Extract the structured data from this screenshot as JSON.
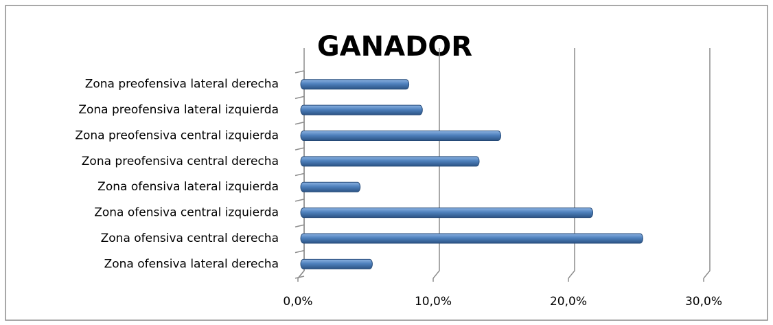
{
  "chart_data": {
    "type": "bar",
    "orientation": "horizontal",
    "title": "GANADOR",
    "categories": [
      "Zona preofensiva lateral derecha",
      "Zona preofensiva lateral izquierda",
      "Zona preofensiva central izquierda",
      "Zona preofensiva central derecha",
      "Zona ofensiva lateral izquierda",
      "Zona ofensiva central izquierda",
      "Zona ofensiva central derecha",
      "Zona ofensiva lateral derecha"
    ],
    "values": [
      8.0,
      9.0,
      14.8,
      13.2,
      4.4,
      21.6,
      25.3,
      5.3
    ],
    "color": "#4f81bd",
    "xlim": [
      0,
      30
    ],
    "xticks": [
      {
        "value": 0,
        "label": "0,0%"
      },
      {
        "value": 10,
        "label": "10,0%"
      },
      {
        "value": 20,
        "label": "20,0%"
      },
      {
        "value": 30,
        "label": "30,0%"
      }
    ],
    "grid": true
  }
}
